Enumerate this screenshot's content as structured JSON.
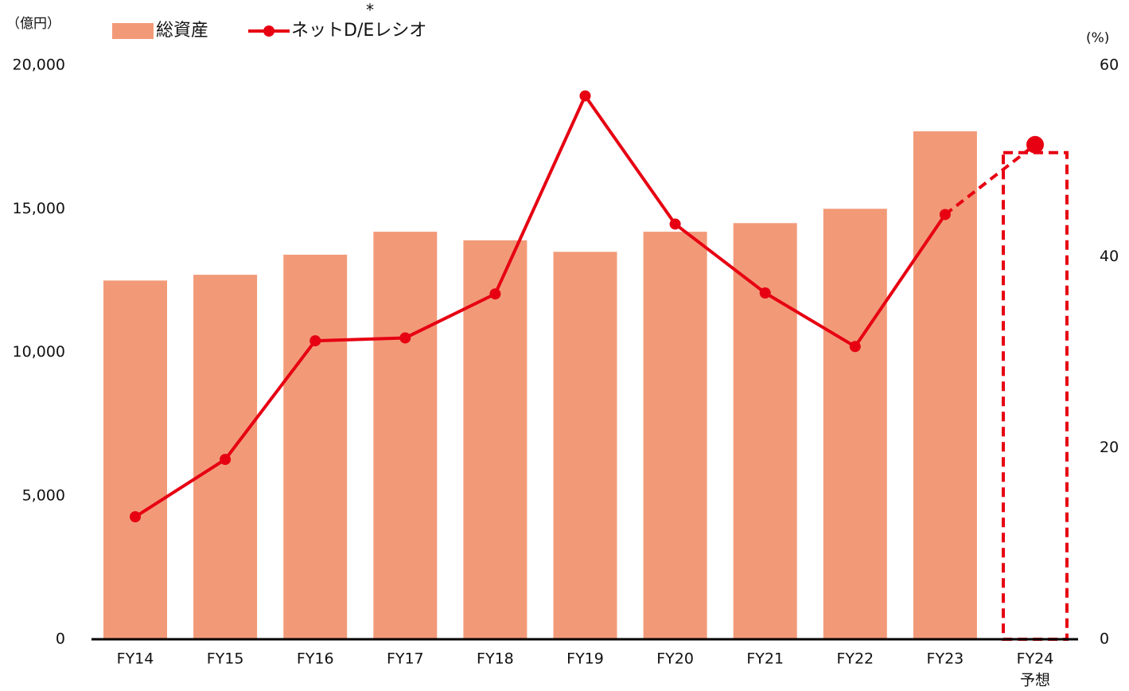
{
  "chart_data": {
    "type": "bar_line",
    "left_unit": "（億円）",
    "right_unit": "(%)",
    "categories": [
      "FY14",
      "FY15",
      "FY16",
      "FY17",
      "FY18",
      "FY19",
      "FY20",
      "FY21",
      "FY22",
      "FY23",
      "FY24"
    ],
    "category_note": "予想",
    "legend_note": "*",
    "series": [
      {
        "name": "総資産",
        "type": "bar",
        "color": "#f29a78",
        "values": [
          12500,
          12700,
          13400,
          14200,
          13900,
          13500,
          14200,
          14500,
          15000,
          17700,
          null
        ]
      },
      {
        "name": "ネットD/Eレシオ",
        "type": "line",
        "axis": "y2",
        "color": "#e60012",
        "values": [
          12.8,
          18.8,
          31.2,
          31.5,
          36.1,
          56.8,
          43.4,
          36.2,
          30.6,
          44.4,
          51.7
        ]
      }
    ],
    "ylim": [
      0,
      20000
    ],
    "yticks": [
      0,
      {
        "value": 5000,
        "label": "5,000"
      },
      {
        "value": 10000,
        "label": "10,000"
      },
      {
        "value": 15000,
        "label": "15,000"
      },
      {
        "value": 20000,
        "label": "20,000"
      }
    ],
    "y2lim": [
      0,
      60
    ],
    "y2ticks": [
      0,
      20,
      40,
      60
    ]
  }
}
